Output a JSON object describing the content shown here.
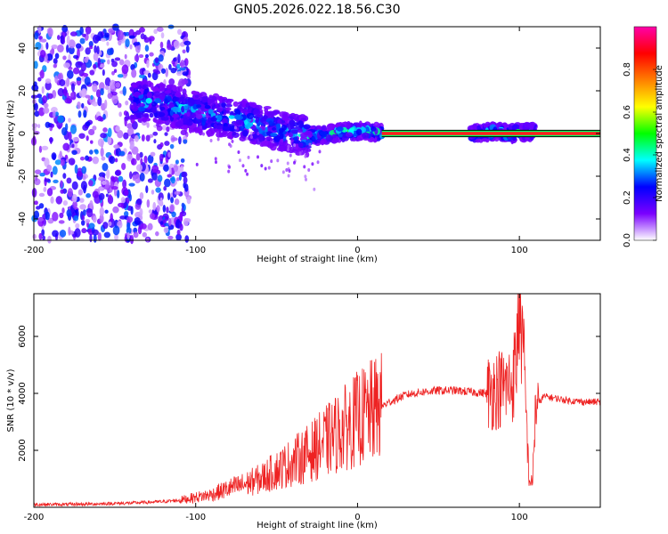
{
  "title": "GN05.2026.022.18.56.C30",
  "chart_data": [
    {
      "type": "heatmap",
      "xlabel": "Height of straight line (km)",
      "ylabel": "Frequency (Hz)",
      "xlim": [
        -200,
        150
      ],
      "ylim": [
        -50,
        50
      ],
      "xticks": [
        -200,
        -100,
        0,
        100
      ],
      "yticks": [
        -40,
        -20,
        0,
        20,
        40
      ],
      "colorbar": {
        "label": "Normalized spectral amplitude",
        "range": [
          0,
          1
        ],
        "ticks": [
          "0.0",
          "0.2",
          "0.4",
          "0.6",
          "0.8"
        ],
        "colors": [
          "#ffffff",
          "#7a00ff",
          "#0000ff",
          "#00ffff",
          "#00ff00",
          "#ffff00",
          "#ff7f00",
          "#ff0000",
          "#ff00aa"
        ]
      },
      "band": {
        "center_hz": 0,
        "half_width_hz": 1.5,
        "color": "#ff1f1f"
      },
      "ridge": {
        "height_km": [
          -130,
          -115,
          -100,
          -85,
          -70,
          -55,
          -45,
          -35,
          -25,
          -15,
          -5,
          5,
          15,
          75,
          85,
          95,
          105
        ],
        "freq_hz": [
          15,
          13,
          10,
          8,
          6,
          3,
          1,
          -1,
          -1,
          0,
          1,
          1,
          0,
          0,
          1,
          0,
          1
        ]
      },
      "noise_region_km": [
        -200,
        -110
      ]
    },
    {
      "type": "line",
      "xlabel": "Height of straight line (km)",
      "ylabel": "SNR (10 * v/v)",
      "xlim": [
        -200,
        150
      ],
      "ylim": [
        0,
        7500
      ],
      "xticks": [
        -200,
        -100,
        0,
        100
      ],
      "yticks": [
        2000,
        4000,
        6000
      ],
      "color": "#ee2222",
      "series": [
        {
          "name": "SNR",
          "x": [
            -200,
            -180,
            -160,
            -140,
            -120,
            -110,
            -100,
            -90,
            -80,
            -70,
            -60,
            -50,
            -40,
            -30,
            -20,
            -10,
            0,
            10,
            20,
            30,
            40,
            50,
            60,
            70,
            80,
            85,
            90,
            95,
            98,
            100,
            103,
            106,
            108,
            110,
            115,
            120,
            130,
            140,
            150
          ],
          "y": [
            100,
            100,
            120,
            150,
            200,
            250,
            350,
            450,
            650,
            800,
            1000,
            1300,
            1600,
            1900,
            2300,
            2700,
            3100,
            3400,
            3700,
            3950,
            4050,
            4100,
            4100,
            4050,
            4000,
            4150,
            4200,
            4300,
            5000,
            7400,
            4800,
            1000,
            800,
            3500,
            3900,
            3850,
            3750,
            3700,
            3700
          ]
        }
      ]
    }
  ]
}
